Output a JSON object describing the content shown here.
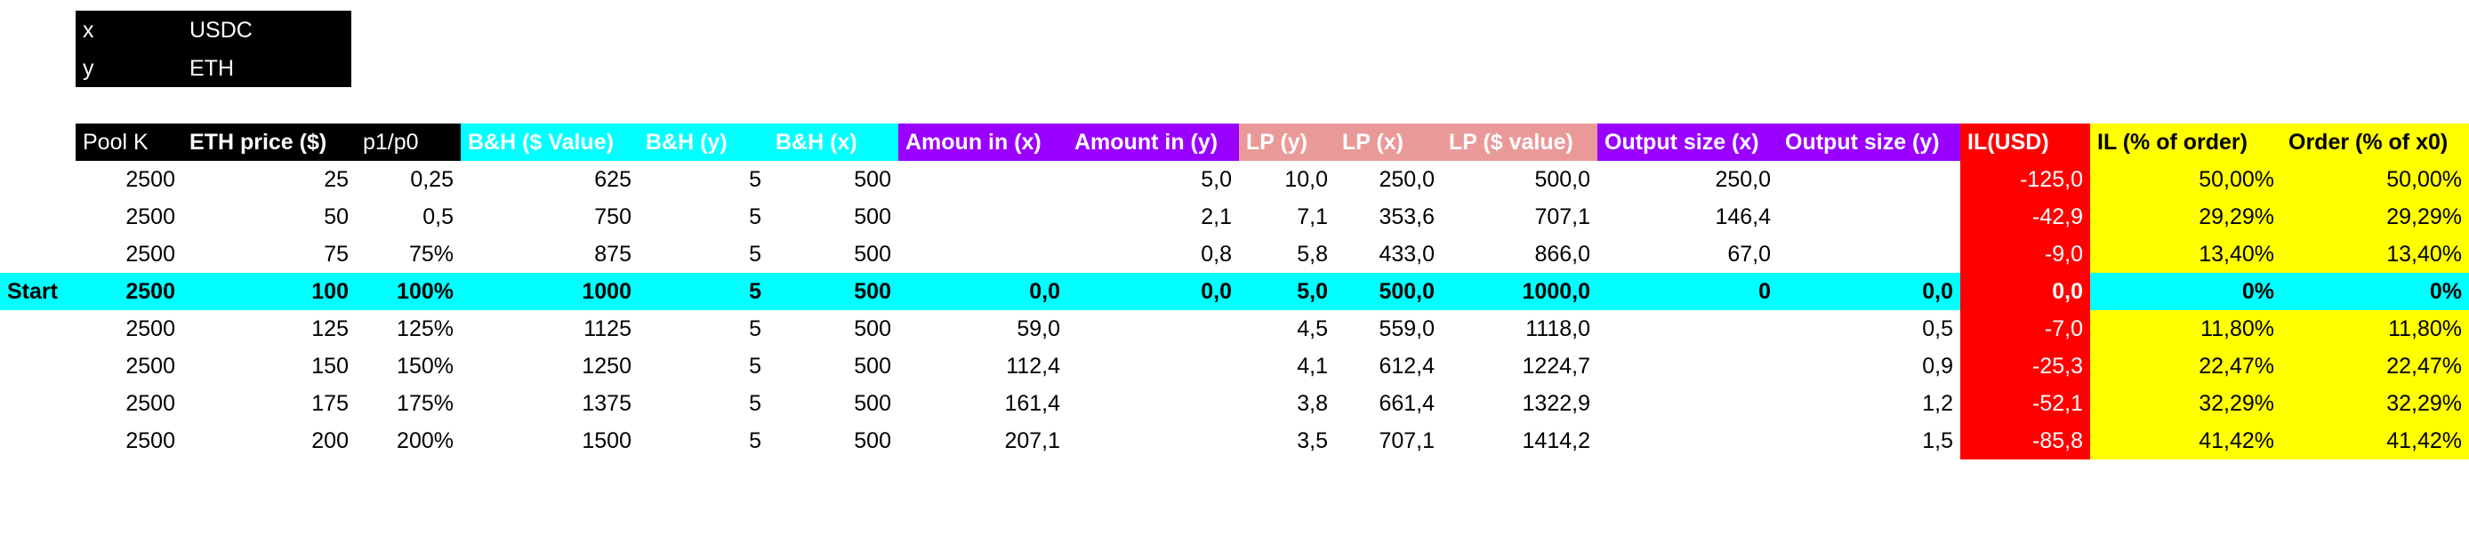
{
  "legend": [
    {
      "key": "x",
      "value": "USDC"
    },
    {
      "key": "y",
      "value": "ETH"
    }
  ],
  "headers": {
    "pool_k": "Pool K",
    "eth_price": "ETH price ($)",
    "p1p0": "p1/p0",
    "bh_value": "B&H ($ Value)",
    "bh_y": "B&H (y)",
    "bh_x": "B&H (x)",
    "amount_in_x": "Amoun in (x)",
    "amount_in_y": "Amount in (y)",
    "lp_y": "LP (y)",
    "lp_x": "LP (x)",
    "lp_value": "LP ($ value)",
    "output_x": "Output size (x)",
    "output_y": "Output size (y)",
    "il_usd": "IL(USD)",
    "il_pct": "IL (% of order)",
    "order_pct": "Order (% of x0)"
  },
  "colors": {
    "black": "#000000",
    "cyan": "#00ffff",
    "purple": "#9a00ff",
    "pink": "#ea9999",
    "red": "#ff0000",
    "yellow": "#ffff00"
  },
  "rows": [
    {
      "label": "",
      "k": "2500",
      "eth": "25",
      "pr": "0,25",
      "bhv": "625",
      "bhy": "5",
      "bhx": "500",
      "ainx": "",
      "ainy": "5,0",
      "lpy": "10,0",
      "lpx": "250,0",
      "lpv": "500,0",
      "osx": "250,0",
      "osy": "",
      "il": "-125,0",
      "ilp": "50,00%",
      "ord": "50,00%"
    },
    {
      "label": "",
      "k": "2500",
      "eth": "50",
      "pr": "0,5",
      "bhv": "750",
      "bhy": "5",
      "bhx": "500",
      "ainx": "",
      "ainy": "2,1",
      "lpy": "7,1",
      "lpx": "353,6",
      "lpv": "707,1",
      "osx": "146,4",
      "osy": "",
      "il": "-42,9",
      "ilp": "29,29%",
      "ord": "29,29%"
    },
    {
      "label": "",
      "k": "2500",
      "eth": "75",
      "pr": "75%",
      "bhv": "875",
      "bhy": "5",
      "bhx": "500",
      "ainx": "",
      "ainy": "0,8",
      "lpy": "5,8",
      "lpx": "433,0",
      "lpv": "866,0",
      "osx": "67,0",
      "osy": "",
      "il": "-9,0",
      "ilp": "13,40%",
      "ord": "13,40%"
    },
    {
      "label": "Start",
      "k": "2500",
      "eth": "100",
      "pr": "100%",
      "bhv": "1000",
      "bhy": "5",
      "bhx": "500",
      "ainx": "0,0",
      "ainy": "0,0",
      "lpy": "5,0",
      "lpx": "500,0",
      "lpv": "1000,0",
      "osx": "0",
      "osy": "0,0",
      "il": "0,0",
      "ilp": "0%",
      "ord": "0%"
    },
    {
      "label": "",
      "k": "2500",
      "eth": "125",
      "pr": "125%",
      "bhv": "1125",
      "bhy": "5",
      "bhx": "500",
      "ainx": "59,0",
      "ainy": "",
      "lpy": "4,5",
      "lpx": "559,0",
      "lpv": "1118,0",
      "osx": "",
      "osy": "0,5",
      "il": "-7,0",
      "ilp": "11,80%",
      "ord": "11,80%"
    },
    {
      "label": "",
      "k": "2500",
      "eth": "150",
      "pr": "150%",
      "bhv": "1250",
      "bhy": "5",
      "bhx": "500",
      "ainx": "112,4",
      "ainy": "",
      "lpy": "4,1",
      "lpx": "612,4",
      "lpv": "1224,7",
      "osx": "",
      "osy": "0,9",
      "il": "-25,3",
      "ilp": "22,47%",
      "ord": "22,47%"
    },
    {
      "label": "",
      "k": "2500",
      "eth": "175",
      "pr": "175%",
      "bhv": "1375",
      "bhy": "5",
      "bhx": "500",
      "ainx": "161,4",
      "ainy": "",
      "lpy": "3,8",
      "lpx": "661,4",
      "lpv": "1322,9",
      "osx": "",
      "osy": "1,2",
      "il": "-52,1",
      "ilp": "32,29%",
      "ord": "32,29%"
    },
    {
      "label": "",
      "k": "2500",
      "eth": "200",
      "pr": "200%",
      "bhv": "1500",
      "bhy": "5",
      "bhx": "500",
      "ainx": "207,1",
      "ainy": "",
      "lpy": "3,5",
      "lpx": "707,1",
      "lpv": "1414,2",
      "osx": "",
      "osy": "1,5",
      "il": "-85,8",
      "ilp": "41,42%",
      "ord": "41,42%"
    }
  ]
}
